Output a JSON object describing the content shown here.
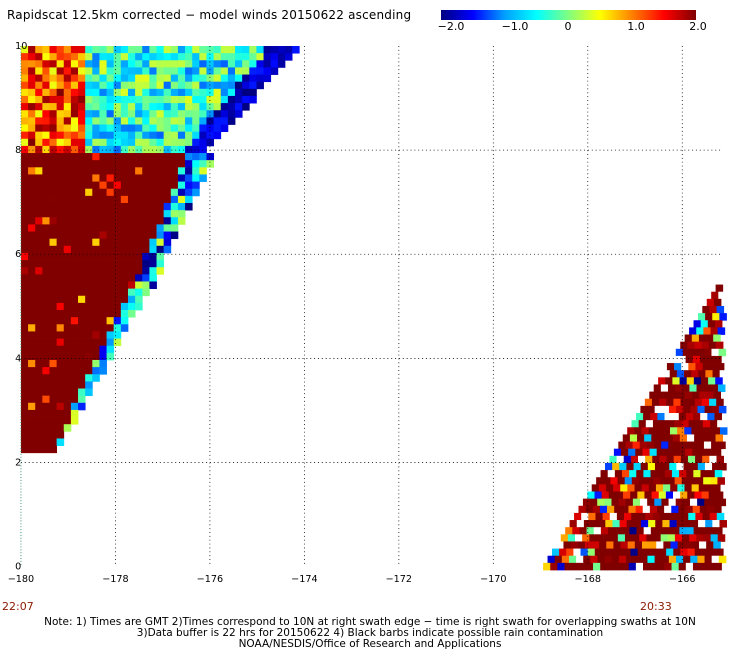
{
  "title": "Rapidscat 12.5km corrected − model winds 20150622 ascending",
  "colorbar": {
    "ticks": [
      "−2.0",
      "−1.0",
      "0",
      "1.0",
      "2.0"
    ],
    "stops": [
      "#000080",
      "#0000ff",
      "#00a0ff",
      "#00ffff",
      "#80ff80",
      "#ffff00",
      "#ff8000",
      "#ff0000",
      "#800000"
    ]
  },
  "chart_data": {
    "type": "heatmap",
    "x_ticks": [
      "-180",
      "-178",
      "-176",
      "-174",
      "-172",
      "-170",
      "-168",
      "-166"
    ],
    "y_ticks": [
      "0",
      "2",
      "4",
      "6",
      "8",
      "10"
    ],
    "xlim": [
      -180,
      -165.2
    ],
    "ylim": [
      0,
      10
    ],
    "grid": true,
    "value_range": [
      -2.0,
      2.0
    ]
  },
  "times": {
    "left": "22:07",
    "right": "20:33"
  },
  "notes": [
    "Note: 1) Times are GMT 2)Times correspond to 10N at right swath edge − time is right swath for overlapping swaths at 10N",
    "3)Data buffer is 22 hrs for 20150622 4) Black barbs indicate possible rain contamination",
    "NOAA/NESDIS/Office of Research and Applications"
  ]
}
